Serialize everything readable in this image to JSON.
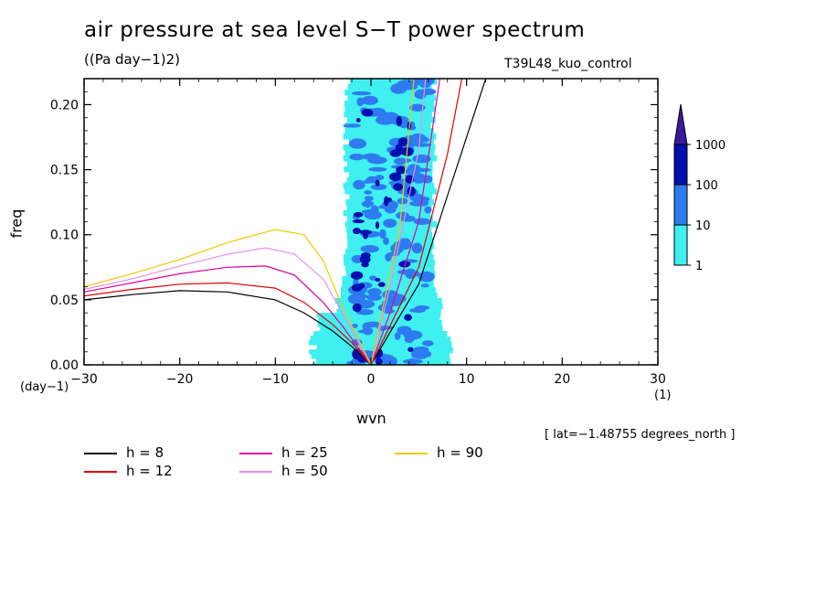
{
  "title": "air pressure at sea level S−T power spectrum",
  "units": "((Pa day−1)2)",
  "run_name": "T39L48_kuo_control",
  "lat_note": "[ lat=−1.48755 degrees_north ]",
  "chart_data": {
    "type": "contour",
    "xlabel": "wvn",
    "ylabel": "freq",
    "x_unit": "(1)",
    "y_unit": "(day−1)",
    "xlim": [
      -30,
      30
    ],
    "ylim": [
      0,
      0.22
    ],
    "x_ticks": [
      "−30",
      "−20",
      "−10",
      "0",
      "10",
      "20",
      "30"
    ],
    "y_ticks": [
      "0.00",
      "0.05",
      "0.10",
      "0.15",
      "0.20"
    ],
    "colorbar": {
      "levels": [
        "1",
        "10",
        "100",
        "1000"
      ],
      "colors": [
        "#40f0f0",
        "#2e7bf0",
        "#0010b0",
        "#3a1aa0"
      ]
    },
    "series": [
      {
        "name": "h =  8",
        "color": "#000000",
        "points": [
          [
            -30,
            0.05
          ],
          [
            -25,
            0.054
          ],
          [
            -20,
            0.057
          ],
          [
            -15,
            0.056
          ],
          [
            -10,
            0.05
          ],
          [
            -7,
            0.04
          ],
          [
            -4,
            0.026
          ],
          [
            -2,
            0.014
          ],
          [
            0,
            0
          ],
          [
            2,
            0.025
          ],
          [
            5,
            0.062
          ],
          [
            8,
            0.13
          ],
          [
            12,
            0.22
          ]
        ]
      },
      {
        "name": "h = 12",
        "color": "#e00000",
        "points": [
          [
            -30,
            0.053
          ],
          [
            -25,
            0.058
          ],
          [
            -20,
            0.062
          ],
          [
            -15,
            0.063
          ],
          [
            -10,
            0.059
          ],
          [
            -7,
            0.048
          ],
          [
            -4,
            0.031
          ],
          [
            -2,
            0.017
          ],
          [
            0,
            0
          ],
          [
            2,
            0.03
          ],
          [
            5,
            0.075
          ],
          [
            8,
            0.162
          ],
          [
            9.5,
            0.22
          ]
        ]
      },
      {
        "name": "h = 25",
        "color": "#e000a0",
        "points": [
          [
            -30,
            0.056
          ],
          [
            -25,
            0.063
          ],
          [
            -20,
            0.07
          ],
          [
            -15,
            0.075
          ],
          [
            -11,
            0.076
          ],
          [
            -8,
            0.069
          ],
          [
            -5,
            0.048
          ],
          [
            -3,
            0.03
          ],
          [
            0,
            0
          ],
          [
            2,
            0.04
          ],
          [
            5,
            0.11
          ],
          [
            7.2,
            0.22
          ]
        ]
      },
      {
        "name": "h = 50",
        "color": "#e890e8",
        "points": [
          [
            -30,
            0.058
          ],
          [
            -25,
            0.066
          ],
          [
            -20,
            0.076
          ],
          [
            -15,
            0.085
          ],
          [
            -11,
            0.09
          ],
          [
            -8,
            0.085
          ],
          [
            -5,
            0.066
          ],
          [
            -3,
            0.04
          ],
          [
            0,
            0
          ],
          [
            2,
            0.06
          ],
          [
            5,
            0.165
          ],
          [
            5.7,
            0.22
          ]
        ]
      },
      {
        "name": "h = 90",
        "color": "#f0c800",
        "points": [
          [
            -30,
            0.06
          ],
          [
            -25,
            0.07
          ],
          [
            -20,
            0.081
          ],
          [
            -15,
            0.094
          ],
          [
            -10,
            0.104
          ],
          [
            -7,
            0.1
          ],
          [
            -5,
            0.08
          ],
          [
            -3,
            0.045
          ],
          [
            0,
            0
          ],
          [
            2,
            0.07
          ],
          [
            3,
            0.105
          ],
          [
            4.5,
            0.22
          ]
        ]
      }
    ]
  }
}
